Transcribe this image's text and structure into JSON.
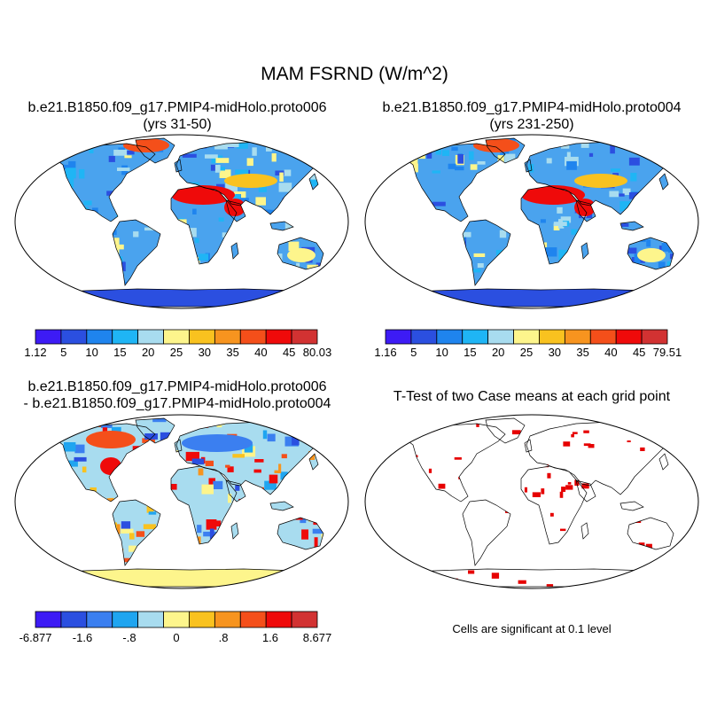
{
  "figure": {
    "title": "MAM FSRND (W/m^2)"
  },
  "panels": [
    {
      "id": "case1",
      "title_line1": "b.e21.B1850.f09_g17.PMIP4-midHolo.proto006",
      "title_line2": "(yrs 31-50)",
      "colorbar": {
        "colors": [
          "#3d1bf5",
          "#2b4fe0",
          "#1f84ee",
          "#1fb5f5",
          "#a8dcef",
          "#fdf58c",
          "#f9c21f",
          "#f7941f",
          "#f44f1a",
          "#ef0a0a",
          "#d23232"
        ],
        "labels": [
          "1.12",
          "5",
          "10",
          "15",
          "20",
          "25",
          "30",
          "35",
          "40",
          "45",
          "80.03"
        ]
      }
    },
    {
      "id": "case2",
      "title_line1": "b.e21.B1850.f09_g17.PMIP4-midHolo.proto004",
      "title_line2": "(yrs 231-250)",
      "colorbar": {
        "colors": [
          "#3d1bf5",
          "#2b4fe0",
          "#1f84ee",
          "#1fb5f5",
          "#a8dcef",
          "#fdf58c",
          "#f9c21f",
          "#f7941f",
          "#f44f1a",
          "#ef0a0a",
          "#d23232"
        ],
        "labels": [
          "1.16",
          "5",
          "10",
          "15",
          "20",
          "25",
          "30",
          "35",
          "40",
          "45",
          "79.51"
        ]
      }
    },
    {
      "id": "diff",
      "title_line1": "b.e21.B1850.f09_g17.PMIP4-midHolo.proto006",
      "title_line2": "- b.e21.B1850.f09_g17.PMIP4-midHolo.proto004",
      "colorbar": {
        "colors": [
          "#3d1bf5",
          "#2b4fe0",
          "#3b7ff0",
          "#1fa5f0",
          "#a8dcef",
          "#fdf58c",
          "#f9c21f",
          "#f7941f",
          "#f44f1a",
          "#ef0a0a",
          "#d23232"
        ],
        "labels": [
          "-6.877",
          "-1.6",
          "-.8",
          "0",
          ".8",
          "1.6",
          "8.677"
        ]
      }
    },
    {
      "id": "ttest",
      "title_line1": "T-Test of two Case means at each grid point",
      "note": "Cells are significant at 0.1 level",
      "mark_color": "#e60000"
    }
  ]
}
